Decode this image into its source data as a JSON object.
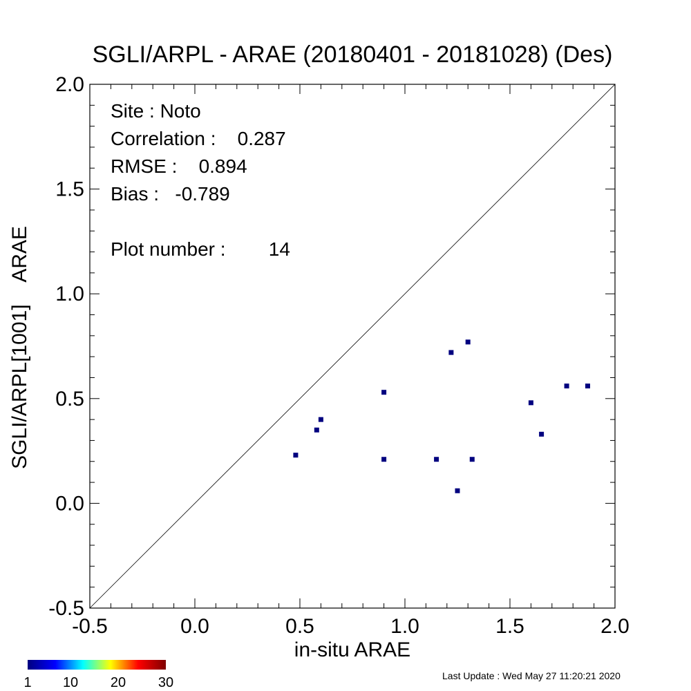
{
  "chart_data": {
    "type": "scatter",
    "title": "SGLI/ARPL - ARAE (20180401 - 20181028) (Des)",
    "xlabel": "in-situ ARAE",
    "ylabel": "SGLI/ARPL[1001]    ARAE",
    "xlim": [
      -0.5,
      2.0
    ],
    "ylim": [
      -0.5,
      2.0
    ],
    "x_ticks": [
      "-0.5",
      "0.0",
      "0.5",
      "1.0",
      "1.5",
      "2.0"
    ],
    "y_ticks": [
      "-0.5",
      "0.0",
      "0.5",
      "1.0",
      "1.5",
      "2.0"
    ],
    "reference_line": "1:1",
    "grid": false,
    "marker_color": "#00007f",
    "x": [
      0.48,
      0.58,
      0.6,
      0.9,
      0.9,
      1.15,
      1.22,
      1.25,
      1.3,
      1.32,
      1.6,
      1.65,
      1.77,
      1.87
    ],
    "y": [
      0.23,
      0.35,
      0.4,
      0.53,
      0.21,
      0.21,
      0.72,
      0.06,
      0.77,
      0.21,
      0.48,
      0.33,
      0.56,
      0.56
    ],
    "stats": {
      "site": "Site : Noto",
      "correlation": "Correlation :    0.287",
      "rmse": "RMSE :    0.894",
      "bias": "Bias :   -0.789",
      "plot_number": "Plot number :        14"
    },
    "colorbar": {
      "labels": [
        "1",
        "10",
        "20",
        "30"
      ],
      "colors": [
        "#00007f",
        "#0000ff",
        "#00ffff",
        "#ffff00",
        "#ff0000",
        "#7f0000"
      ]
    }
  },
  "footer": {
    "last_update": "Last Update : Wed May 27 11:20:21 2020"
  }
}
